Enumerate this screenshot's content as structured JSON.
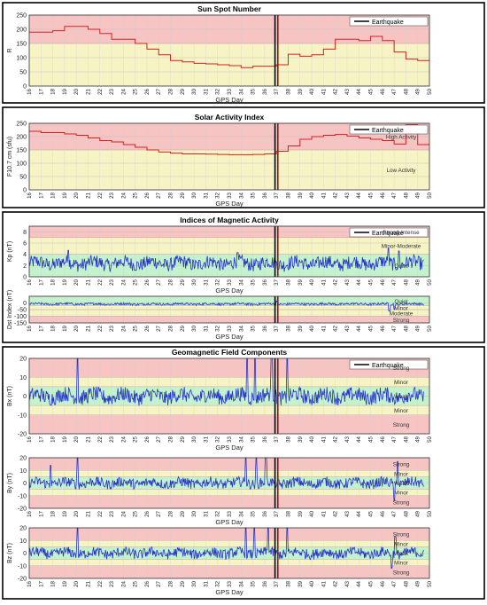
{
  "colors": {
    "red_zone": "#f7c4c4",
    "yellow_zone": "#f6f3c4",
    "green_zone": "#c4f2cc",
    "red_line": "#d62020",
    "blue_line": "#2233cc",
    "quake_line": "#000000",
    "quake_line2": "#8b1a1a",
    "frame": "#000000"
  },
  "x_ticks": [
    "16",
    "17",
    "18",
    "19",
    "20",
    "21",
    "22",
    "23",
    "24",
    "25",
    "26",
    "27",
    "28",
    "29",
    "30",
    "31",
    "32",
    "33",
    "34",
    "35",
    "36",
    "37",
    "38",
    "39",
    "40",
    "41",
    "42",
    "43",
    "44",
    "45",
    "46",
    "47",
    "48",
    "49",
    "50"
  ],
  "legend_label": "Earthquake",
  "earthquake_day": 37,
  "chart_data": [
    {
      "type": "line",
      "title": "Sun Spot Number",
      "xlabel": "GPS Day",
      "ylabel": "R",
      "xlim": [
        16,
        50
      ],
      "ylim": [
        0,
        250
      ],
      "yticks": [
        "0",
        "50",
        "100",
        "150",
        "200",
        "250"
      ],
      "zones": [
        {
          "from": 150,
          "to": 250,
          "color": "red"
        },
        {
          "from": 0,
          "to": 150,
          "color": "yellow"
        }
      ],
      "series": [
        {
          "step": true,
          "color": "red",
          "x": [
            16,
            18,
            19,
            20,
            21,
            22,
            23,
            24,
            25,
            26,
            27,
            28,
            29,
            30,
            31,
            32,
            33,
            34,
            35,
            36,
            37,
            38,
            39,
            40,
            41,
            42,
            43,
            44,
            45,
            46,
            47,
            48,
            49
          ],
          "y": [
            190,
            195,
            210,
            210,
            200,
            185,
            165,
            165,
            150,
            130,
            110,
            90,
            85,
            80,
            78,
            75,
            72,
            65,
            70,
            70,
            75,
            112,
            105,
            110,
            130,
            165,
            165,
            160,
            175,
            160,
            120,
            95,
            90
          ]
        }
      ]
    },
    {
      "type": "line",
      "title": "Solar Activity Index",
      "xlabel": "GPS Day",
      "ylabel": "F10.7 cm (sfu)",
      "xlim": [
        16,
        50
      ],
      "ylim": [
        0,
        250
      ],
      "yticks": [
        "0",
        "50",
        "100",
        "150",
        "200",
        "250"
      ],
      "zones": [
        {
          "from": 150,
          "to": 250,
          "color": "red",
          "label": "High Activity"
        },
        {
          "from": 0,
          "to": 150,
          "color": "yellow",
          "label": "Low Activity"
        }
      ],
      "series": [
        {
          "step": true,
          "color": "red",
          "x": [
            16,
            17,
            18,
            19,
            20,
            21,
            22,
            23,
            24,
            25,
            26,
            27,
            28,
            29,
            30,
            31,
            32,
            33,
            34,
            35,
            36,
            37,
            38,
            39,
            40,
            41,
            42,
            43,
            44,
            45,
            46,
            47,
            48,
            49
          ],
          "y": [
            220,
            215,
            215,
            210,
            205,
            195,
            185,
            180,
            170,
            160,
            150,
            142,
            138,
            135,
            135,
            134,
            133,
            132,
            132,
            133,
            135,
            145,
            165,
            190,
            200,
            205,
            208,
            202,
            195,
            190,
            185,
            172,
            245,
            170
          ]
        }
      ]
    },
    {
      "type": "line",
      "title": "Indices of Magnetic Activity",
      "xlabel": "GPS Day",
      "ylabel": "Kp (nT)",
      "xlim": [
        16,
        50
      ],
      "ylim": [
        0,
        9
      ],
      "yticks": [
        "0",
        "2",
        "4",
        "6",
        "8"
      ],
      "zones": [
        {
          "from": 7,
          "to": 9,
          "color": "red",
          "label": "Strong-Intense"
        },
        {
          "from": 4,
          "to": 7,
          "color": "yellow",
          "label": "Minor-Moderate"
        },
        {
          "from": 0,
          "to": 4,
          "color": "green",
          "label": "Quiet"
        }
      ],
      "series": [
        {
          "color": "blue",
          "base": 2.4,
          "amp": 1.2,
          "spikes": [
            [
              19.3,
              4.7
            ],
            [
              33.7,
              4.3
            ],
            [
              46.5,
              5.1
            ],
            [
              47.4,
              4.6
            ]
          ]
        }
      ]
    },
    {
      "type": "line",
      "xlabel": "GPS Day",
      "ylabel": "Dst Index (nT)",
      "xlim": [
        16,
        50
      ],
      "ylim": [
        -150,
        50
      ],
      "yticks": [
        "-150",
        "-100",
        "-50",
        "0"
      ],
      "zones": [
        {
          "from": -20,
          "to": 50,
          "color": "green",
          "label": "Quiet"
        },
        {
          "from": -50,
          "to": -20,
          "color": "yellow",
          "label": "Minor"
        },
        {
          "from": -100,
          "to": -50,
          "color": "yellow",
          "label": "Moderate"
        },
        {
          "from": -150,
          "to": -100,
          "color": "red",
          "label": "Strong"
        }
      ],
      "series": [
        {
          "color": "blue",
          "base": -8,
          "amp": 9,
          "spikes": [
            [
              37,
              16
            ],
            [
              46.6,
              -60
            ],
            [
              47.0,
              -48
            ]
          ]
        }
      ]
    },
    {
      "type": "line",
      "title": "Geomagnetic Field Components",
      "xlabel": "GPS Day",
      "ylabel": "Bx (nT)",
      "xlim": [
        16,
        50
      ],
      "ylim": [
        -20,
        20
      ],
      "yticks": [
        "-20",
        "-10",
        "0",
        "10",
        "20"
      ],
      "zones": [
        {
          "from": 10,
          "to": 20,
          "color": "red",
          "label": "Strong"
        },
        {
          "from": 5,
          "to": 10,
          "color": "yellow",
          "label": "Minor"
        },
        {
          "from": -5,
          "to": 5,
          "color": "green",
          "label": "Weak"
        },
        {
          "from": -10,
          "to": -5,
          "color": "yellow",
          "label": "Minor"
        },
        {
          "from": -20,
          "to": -10,
          "color": "red",
          "label": "Strong"
        }
      ],
      "series": [
        {
          "color": "blue",
          "base": 0,
          "amp": 4,
          "spikes": [
            [
              20.1,
              20
            ],
            [
              34.5,
              20
            ],
            [
              35.2,
              20
            ],
            [
              36.6,
              20
            ],
            [
              37.9,
              20
            ]
          ]
        }
      ]
    },
    {
      "type": "line",
      "xlabel": "GPS Day",
      "ylabel": "By (nT)",
      "xlim": [
        16,
        50
      ],
      "ylim": [
        -20,
        20
      ],
      "yticks": [
        "-20",
        "-10",
        "0",
        "10",
        "20"
      ],
      "zones": [
        {
          "from": 10,
          "to": 20,
          "color": "red",
          "label": "Strong"
        },
        {
          "from": 5,
          "to": 10,
          "color": "yellow",
          "label": "Minor"
        },
        {
          "from": -5,
          "to": 5,
          "color": "green",
          "label": "Weak"
        },
        {
          "from": -10,
          "to": -5,
          "color": "yellow",
          "label": "Minor"
        },
        {
          "from": -20,
          "to": -10,
          "color": "red",
          "label": "Strong"
        }
      ],
      "series": [
        {
          "color": "blue",
          "base": 0,
          "amp": 4,
          "spikes": [
            [
              17.8,
              14
            ],
            [
              20.1,
              20
            ],
            [
              34.4,
              20
            ],
            [
              35.3,
              20
            ],
            [
              36.1,
              20
            ],
            [
              47.3,
              17
            ],
            [
              47.0,
              -14
            ]
          ]
        }
      ]
    },
    {
      "type": "line",
      "xlabel": "GPS Day",
      "ylabel": "Bz (nT)",
      "xlim": [
        16,
        50
      ],
      "ylim": [
        -20,
        20
      ],
      "yticks": [
        "-20",
        "-10",
        "0",
        "10",
        "20"
      ],
      "zones": [
        {
          "from": 10,
          "to": 20,
          "color": "red",
          "label": "Strong"
        },
        {
          "from": 5,
          "to": 10,
          "color": "yellow",
          "label": "Minor"
        },
        {
          "from": -5,
          "to": 5,
          "color": "green",
          "label": "Weak"
        },
        {
          "from": -10,
          "to": -5,
          "color": "yellow",
          "label": "Minor"
        },
        {
          "from": -20,
          "to": -10,
          "color": "red",
          "label": "Strong"
        }
      ],
      "series": [
        {
          "color": "blue",
          "base": 0,
          "amp": 4,
          "spikes": [
            [
              20.1,
              20
            ],
            [
              34.4,
              20
            ],
            [
              35.1,
              20
            ],
            [
              36.3,
              20
            ],
            [
              37.9,
              20
            ],
            [
              47.1,
              13
            ],
            [
              46.8,
              -12
            ]
          ]
        }
      ]
    }
  ]
}
